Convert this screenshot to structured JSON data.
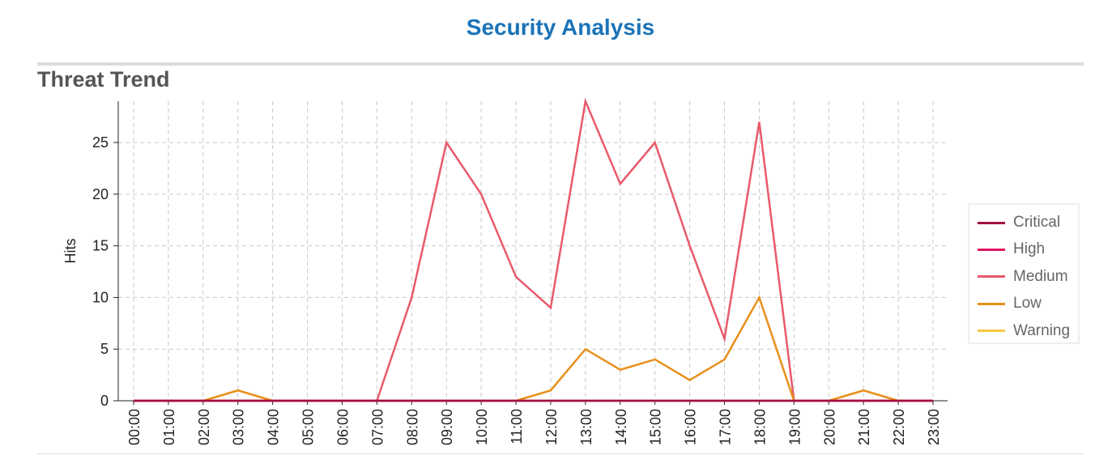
{
  "header": {
    "title": "Security Analysis"
  },
  "section": {
    "title": "Threat Trend"
  },
  "chart_data": {
    "type": "line",
    "title": "Threat Trend",
    "ylabel": "Hits",
    "xlabel": "",
    "ylim": [
      0,
      29
    ],
    "yticks": [
      0,
      5,
      10,
      15,
      20,
      25
    ],
    "grid": true,
    "legend_position": "right",
    "x": [
      "00:00",
      "01:00",
      "02:00",
      "03:00",
      "04:00",
      "05:00",
      "06:00",
      "07:00",
      "08:00",
      "09:00",
      "10:00",
      "11:00",
      "12:00",
      "13:00",
      "14:00",
      "15:00",
      "16:00",
      "17:00",
      "18:00",
      "19:00",
      "20:00",
      "21:00",
      "22:00",
      "23:00"
    ],
    "series": [
      {
        "name": "Critical",
        "color": "#a0103f",
        "values": [
          0,
          0,
          0,
          0,
          0,
          0,
          0,
          0,
          0,
          0,
          0,
          0,
          0,
          0,
          0,
          0,
          0,
          0,
          0,
          0,
          0,
          0,
          0,
          0
        ]
      },
      {
        "name": "High",
        "color": "#e0135f",
        "values": [
          0,
          0,
          0,
          0,
          0,
          0,
          0,
          0,
          0,
          0,
          0,
          0,
          0,
          0,
          0,
          0,
          0,
          0,
          0,
          0,
          0,
          0,
          0,
          0
        ]
      },
      {
        "name": "Medium",
        "color": "#e85a6a",
        "values": [
          0,
          0,
          0,
          0,
          0,
          0,
          0,
          0,
          10,
          25,
          20,
          12,
          9,
          29,
          21,
          25,
          15,
          6,
          27,
          0,
          0,
          0,
          0,
          0
        ]
      },
      {
        "name": "Low",
        "color": "#e8901a",
        "values": [
          0,
          0,
          0,
          1,
          0,
          0,
          0,
          0,
          0,
          0,
          0,
          0,
          1,
          5,
          3,
          4,
          2,
          4,
          10,
          0,
          0,
          1,
          0,
          0
        ]
      },
      {
        "name": "Warning",
        "color": "#f7c646",
        "values": [
          0,
          0,
          0,
          0,
          0,
          0,
          0,
          0,
          0,
          0,
          0,
          0,
          0,
          0,
          0,
          0,
          0,
          0,
          0,
          0,
          0,
          0,
          0,
          0
        ]
      }
    ]
  }
}
